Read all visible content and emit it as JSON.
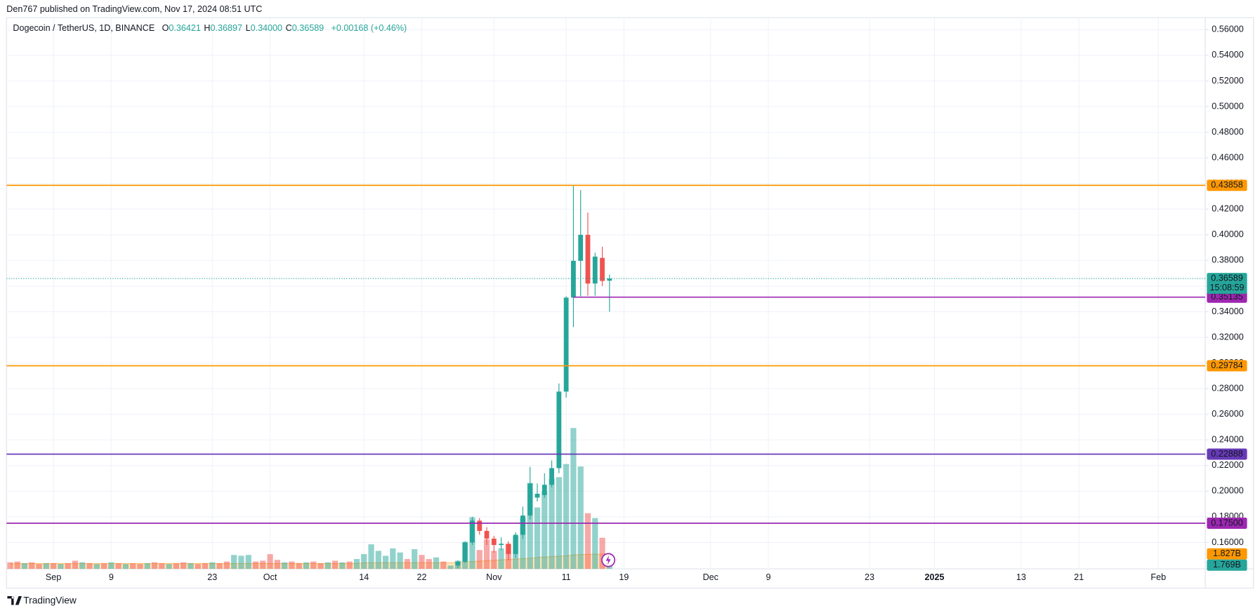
{
  "header": "Den767 published on TradingView.com, Nov 17, 2024 08:51 UTC",
  "footer": "TradingView",
  "chart_data": {
    "type": "candlestick",
    "symbol": "Dogecoin / TetherUS, 1D, BINANCE",
    "legend": [
      {
        "key": "O",
        "value": "0.36421"
      },
      {
        "key": "H",
        "value": "0.36897"
      },
      {
        "key": "L",
        "value": "0.34000"
      },
      {
        "key": "C",
        "value": "0.36589"
      }
    ],
    "change": "+0.00168 (+0.46%)",
    "countdown": "15:08:59",
    "up_color": "#26a69a",
    "down_color": "#ef5350",
    "ma_color": "#ff9800",
    "grid": true,
    "ylim": [
      0.1394,
      0.5694
    ],
    "volume_lim": [
      0,
      67.3
    ],
    "yticks": [
      {
        "value": 0.16,
        "label": "0.16000"
      },
      {
        "value": 0.18,
        "label": "0.18000"
      },
      {
        "value": 0.2,
        "label": "0.20000"
      },
      {
        "value": 0.22,
        "label": "0.22000"
      },
      {
        "value": 0.24,
        "label": "0.24000"
      },
      {
        "value": 0.26,
        "label": "0.26000"
      },
      {
        "value": 0.28,
        "label": "0.28000"
      },
      {
        "value": 0.3,
        "label": "0.30000"
      },
      {
        "value": 0.32,
        "label": "0.32000"
      },
      {
        "value": 0.34,
        "label": "0.34000"
      },
      {
        "value": 0.36,
        "label": "0.36000"
      },
      {
        "value": 0.38,
        "label": "0.38000"
      },
      {
        "value": 0.4,
        "label": "0.40000"
      },
      {
        "value": 0.42,
        "label": "0.42000"
      },
      {
        "value": 0.44,
        "label": "0.44000"
      },
      {
        "value": 0.46,
        "label": "0.46000"
      },
      {
        "value": 0.48,
        "label": "0.48000"
      },
      {
        "value": 0.5,
        "label": "0.50000"
      },
      {
        "value": 0.52,
        "label": "0.52000"
      },
      {
        "value": 0.54,
        "label": "0.54000"
      },
      {
        "value": 0.56,
        "label": "0.56000"
      }
    ],
    "levels": [
      {
        "value": 0.43858,
        "label": "0.43858",
        "color": "#ff9800",
        "extend": "both"
      },
      {
        "value": 0.35135,
        "label": "0.35135",
        "color": "#9c27b0",
        "extend": "right"
      },
      {
        "value": 0.29784,
        "label": "0.29784",
        "color": "#ff9800",
        "extend": "both"
      },
      {
        "value": 0.22888,
        "label": "0.22888",
        "color": "#673ab7",
        "extend": "both"
      },
      {
        "value": 0.175,
        "label": "0.17500",
        "color": "#9c27b0",
        "extend": "both"
      }
    ],
    "categories": [
      null,
      null,
      null,
      null,
      null,
      null,
      "Sep",
      null,
      null,
      null,
      null,
      null,
      null,
      null,
      "9",
      null,
      null,
      null,
      null,
      null,
      null,
      null,
      null,
      null,
      null,
      null,
      null,
      null,
      "23",
      null,
      null,
      null,
      null,
      null,
      null,
      null,
      "Oct",
      null,
      null,
      null,
      null,
      null,
      null,
      null,
      null,
      null,
      null,
      null,
      null,
      "14",
      null,
      null,
      null,
      null,
      null,
      null,
      null,
      "22",
      null,
      null,
      null,
      null,
      null,
      null,
      null,
      null,
      null,
      "Nov",
      null,
      null,
      null,
      null,
      null,
      null,
      null,
      null,
      null,
      "11",
      null,
      null,
      null,
      null,
      null,
      null,
      null,
      "19",
      null,
      null,
      null,
      null,
      null,
      null,
      null,
      null,
      null,
      null,
      null,
      "Dec",
      null,
      null,
      null,
      null,
      null,
      null,
      null,
      "9",
      null,
      null,
      null,
      null,
      null,
      null,
      null,
      null,
      null,
      null,
      null,
      null,
      null,
      "23",
      null,
      null,
      null,
      null,
      null,
      null,
      null,
      null,
      "2025",
      null,
      null,
      null,
      null,
      null,
      null,
      null,
      null,
      null,
      null,
      null,
      "13",
      null,
      null,
      null,
      null,
      null,
      null,
      null,
      "21",
      null,
      null,
      null,
      null,
      null,
      null,
      null,
      null,
      null,
      null,
      "Feb",
      null,
      null,
      null,
      null,
      null,
      null
    ],
    "bars": [
      {
        "volume": 0.8,
        "up": false,
        "ma": 0.65
      },
      {
        "volume": 0.9,
        "up": false,
        "ma": 0.65
      },
      {
        "volume": 0.7,
        "up": true,
        "ma": 0.65
      },
      {
        "volume": 0.8,
        "up": false,
        "ma": 0.65
      },
      {
        "volume": 0.6,
        "up": false,
        "ma": 0.65
      },
      {
        "volume": 0.7,
        "up": true,
        "ma": 0.65
      },
      {
        "volume": 0.7,
        "up": false,
        "ma": 0.65
      },
      {
        "volume": 0.6,
        "up": true,
        "ma": 0.65
      },
      {
        "volume": 0.7,
        "up": false,
        "ma": 0.65
      },
      {
        "volume": 1.0,
        "up": false,
        "ma": 0.65
      },
      {
        "volume": 0.8,
        "up": true,
        "ma": 0.65
      },
      {
        "volume": 0.7,
        "up": false,
        "ma": 0.65
      },
      {
        "volume": 0.6,
        "up": true,
        "ma": 0.65
      },
      {
        "volume": 0.7,
        "up": false,
        "ma": 0.65
      },
      {
        "volume": 0.8,
        "up": true,
        "ma": 0.65
      },
      {
        "volume": 0.7,
        "up": false,
        "ma": 0.65
      },
      {
        "volume": 0.6,
        "up": true,
        "ma": 0.65
      },
      {
        "volume": 0.7,
        "up": false,
        "ma": 0.65
      },
      {
        "volume": 0.6,
        "up": false,
        "ma": 0.65
      },
      {
        "volume": 0.7,
        "up": true,
        "ma": 0.65
      },
      {
        "volume": 0.8,
        "up": false,
        "ma": 0.65
      },
      {
        "volume": 0.7,
        "up": false,
        "ma": 0.65
      },
      {
        "volume": 0.6,
        "up": true,
        "ma": 0.65
      },
      {
        "volume": 0.7,
        "up": false,
        "ma": 0.65
      },
      {
        "volume": 0.8,
        "up": false,
        "ma": 0.65
      },
      {
        "volume": 0.7,
        "up": true,
        "ma": 0.65
      },
      {
        "volume": 0.6,
        "up": false,
        "ma": 0.65
      },
      {
        "volume": 0.7,
        "up": false,
        "ma": 0.65
      },
      {
        "volume": 0.8,
        "up": true,
        "ma": 0.65
      },
      {
        "volume": 0.7,
        "up": false,
        "ma": 0.65
      },
      {
        "volume": 0.9,
        "up": false,
        "ma": 0.65
      },
      {
        "volume": 1.7,
        "up": true,
        "ma": 0.65
      },
      {
        "volume": 1.6,
        "up": true,
        "ma": 0.65
      },
      {
        "volume": 1.7,
        "up": true,
        "ma": 0.65
      },
      {
        "volume": 0.9,
        "up": false,
        "ma": 0.65
      },
      {
        "volume": 1.0,
        "up": false,
        "ma": 0.65
      },
      {
        "volume": 1.8,
        "up": false,
        "ma": 0.65
      },
      {
        "volume": 1.1,
        "up": false,
        "ma": 0.65
      },
      {
        "volume": 0.8,
        "up": true,
        "ma": 0.65
      },
      {
        "volume": 0.9,
        "up": false,
        "ma": 0.65
      },
      {
        "volume": 0.7,
        "up": false,
        "ma": 0.65
      },
      {
        "volume": 0.8,
        "up": true,
        "ma": 0.65
      },
      {
        "volume": 0.9,
        "up": false,
        "ma": 0.65
      },
      {
        "volume": 0.7,
        "up": false,
        "ma": 0.65
      },
      {
        "volume": 0.8,
        "up": true,
        "ma": 0.65
      },
      {
        "volume": 1.0,
        "up": false,
        "ma": 0.65
      },
      {
        "volume": 0.8,
        "up": true,
        "ma": 0.65
      },
      {
        "volume": 0.9,
        "up": false,
        "ma": 0.65
      },
      {
        "volume": 1.2,
        "up": true,
        "ma": 0.65
      },
      {
        "volume": 1.8,
        "up": true,
        "ma": 0.75
      },
      {
        "volume": 3.0,
        "up": true,
        "ma": 0.75
      },
      {
        "volume": 2.2,
        "up": true,
        "ma": 0.75
      },
      {
        "volume": 1.6,
        "up": true,
        "ma": 0.75
      },
      {
        "volume": 2.5,
        "up": true,
        "ma": 0.75
      },
      {
        "volume": 2.0,
        "up": true,
        "ma": 0.75
      },
      {
        "volume": 1.2,
        "up": false,
        "ma": 0.75
      },
      {
        "volume": 2.4,
        "up": true,
        "ma": 0.75
      },
      {
        "volume": 1.7,
        "up": false,
        "ma": 0.75
      },
      {
        "volume": 1.2,
        "up": false,
        "ma": 0.75
      },
      {
        "volume": 1.4,
        "up": true,
        "ma": 0.75
      },
      {
        "volume": 0.9,
        "up": false,
        "ma": 0.75
      },
      {
        "volume": 0.4,
        "up": true,
        "ma": 0.75
      },
      {
        "open": 0.142,
        "high": 0.146,
        "low": 0.14,
        "close": 0.145,
        "volume": 1.0,
        "ma": 0.8
      },
      {
        "open": 0.145,
        "high": 0.161,
        "low": 0.144,
        "close": 0.16,
        "volume": 3.3,
        "ma": 0.85
      },
      {
        "open": 0.16,
        "high": 0.18,
        "low": 0.158,
        "close": 0.177,
        "volume": 6.3,
        "ma": 0.9
      },
      {
        "open": 0.177,
        "high": 0.179,
        "low": 0.166,
        "close": 0.169,
        "volume": 2.3,
        "ma": 0.95
      },
      {
        "open": 0.169,
        "high": 0.172,
        "low": 0.158,
        "close": 0.163,
        "volume": 3.6,
        "ma": 1.0
      },
      {
        "open": 0.163,
        "high": 0.165,
        "low": 0.152,
        "close": 0.158,
        "volume": 2.2,
        "ma": 1.05
      },
      {
        "open": 0.158,
        "high": 0.164,
        "low": 0.154,
        "close": 0.159,
        "volume": 2.5,
        "ma": 1.1
      },
      {
        "open": 0.159,
        "high": 0.161,
        "low": 0.146,
        "close": 0.151,
        "volume": 3.0,
        "ma": 1.15
      },
      {
        "open": 0.151,
        "high": 0.168,
        "low": 0.148,
        "close": 0.166,
        "volume": 4.0,
        "ma": 1.2
      },
      {
        "open": 0.166,
        "high": 0.188,
        "low": 0.163,
        "close": 0.181,
        "volume": 6.2,
        "ma": 1.25
      },
      {
        "open": 0.181,
        "high": 0.219,
        "low": 0.178,
        "close": 0.206,
        "volume": 10.5,
        "ma": 1.3
      },
      {
        "open": 0.195,
        "high": 0.206,
        "low": 0.192,
        "close": 0.198,
        "volume": 7.5,
        "ma": 1.4
      },
      {
        "open": 0.197,
        "high": 0.214,
        "low": 0.195,
        "close": 0.205,
        "volume": 9.5,
        "ma": 1.45
      },
      {
        "open": 0.205,
        "high": 0.224,
        "low": 0.203,
        "close": 0.218,
        "volume": 11.0,
        "ma": 1.5
      },
      {
        "open": 0.218,
        "high": 0.284,
        "low": 0.214,
        "close": 0.2777,
        "volume": 11.2,
        "ma": 1.55
      },
      {
        "open": 0.2777,
        "high": 0.352,
        "low": 0.273,
        "close": 0.351,
        "volume": 12.8,
        "ma": 1.6
      },
      {
        "open": 0.351,
        "high": 0.43858,
        "low": 0.328,
        "close": 0.3797,
        "volume": 17.2,
        "ma": 1.7
      },
      {
        "open": 0.3797,
        "high": 0.4348,
        "low": 0.352,
        "close": 0.4,
        "volume": 12.5,
        "ma": 1.75
      },
      {
        "open": 0.4,
        "high": 0.4173,
        "low": 0.3525,
        "close": 0.362,
        "volume": 6.8,
        "ma": 1.78
      },
      {
        "open": 0.362,
        "high": 0.386,
        "low": 0.3525,
        "close": 0.383,
        "volume": 6.2,
        "ma": 1.8
      },
      {
        "open": 0.382,
        "high": 0.3907,
        "low": 0.36,
        "close": 0.364,
        "volume": 3.8,
        "ma": 1.81
      },
      {
        "open": 0.36421,
        "high": 0.36897,
        "low": 0.34,
        "close": 0.36589,
        "volume": 1.769,
        "volume_label": "1.769B",
        "ma": 1.827,
        "ma_label": "1.827B"
      },
      null,
      null,
      null,
      null,
      null,
      null,
      null,
      null,
      null,
      null,
      null,
      null,
      null,
      null,
      null,
      null,
      null,
      null,
      null,
      null,
      null,
      null,
      null,
      null,
      null,
      null,
      null,
      null,
      null,
      null,
      null,
      null,
      null,
      null,
      null,
      null,
      null,
      null,
      null,
      null,
      null,
      null,
      null,
      null,
      null,
      null,
      null,
      null,
      null,
      null,
      null,
      null,
      null,
      null,
      null,
      null,
      null,
      null,
      null,
      null,
      null,
      null,
      null,
      null,
      null,
      null,
      null,
      null,
      null,
      null,
      null,
      null,
      null,
      null,
      null,
      null,
      null,
      null,
      null,
      null,
      null,
      null
    ]
  }
}
